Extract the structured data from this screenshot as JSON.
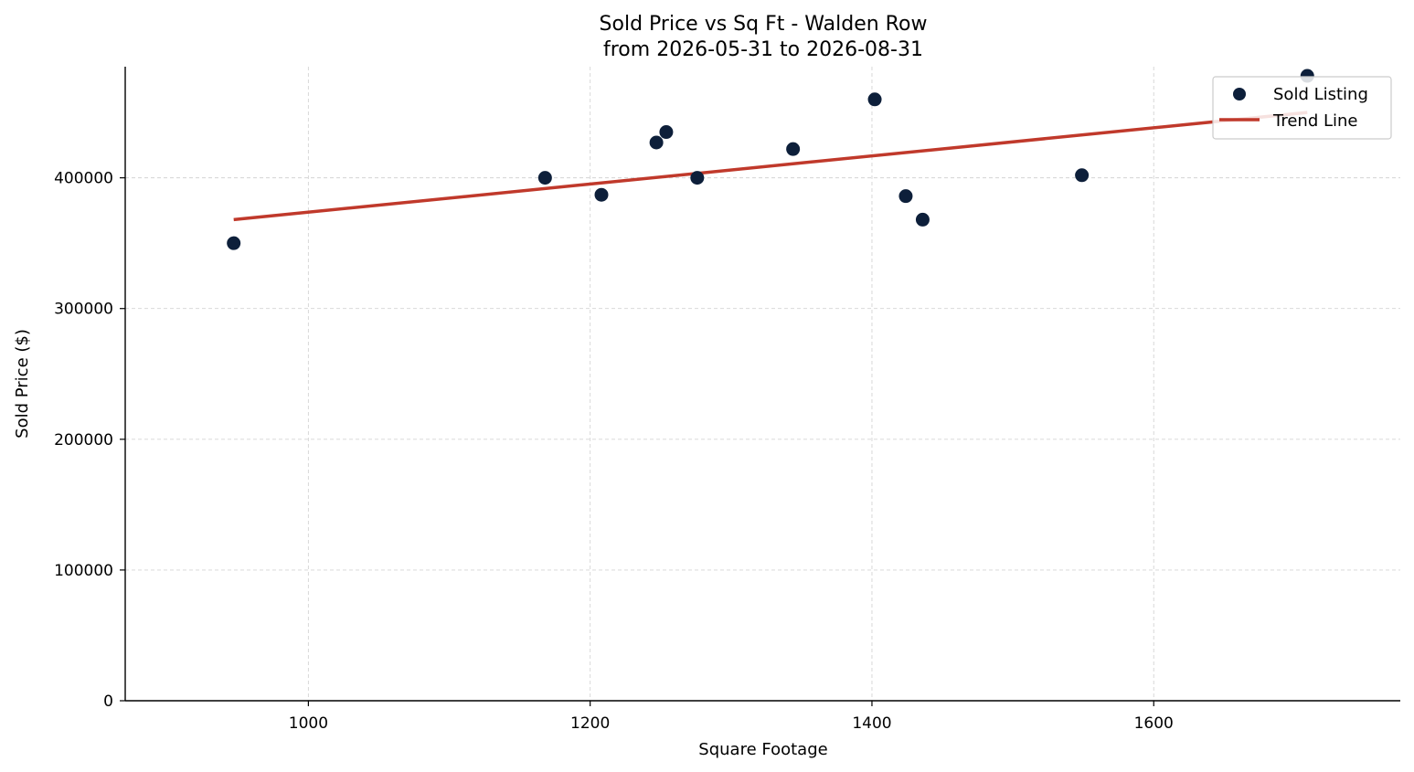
{
  "chart_data": {
    "type": "scatter",
    "title": "Sold Price vs Sq Ft - Walden Row",
    "subtitle": "from 2026-05-31 to 2026-08-31",
    "xlabel": "Square Footage",
    "ylabel": "Sold Price ($)",
    "xlim": [
      870,
      1775
    ],
    "ylim": [
      0,
      485000
    ],
    "x_ticks": [
      1000,
      1200,
      1400,
      1600
    ],
    "y_ticks": [
      0,
      100000,
      200000,
      300000,
      400000
    ],
    "grid": true,
    "legend_position": "top-right",
    "series": [
      {
        "name": "Sold Listing",
        "kind": "scatter",
        "color": "#0d1f3a",
        "points": [
          {
            "x": 947,
            "y": 350000
          },
          {
            "x": 1168,
            "y": 400000
          },
          {
            "x": 1208,
            "y": 387000
          },
          {
            "x": 1247,
            "y": 427000
          },
          {
            "x": 1254,
            "y": 435000
          },
          {
            "x": 1276,
            "y": 400000
          },
          {
            "x": 1344,
            "y": 422000
          },
          {
            "x": 1402,
            "y": 460000
          },
          {
            "x": 1424,
            "y": 386000
          },
          {
            "x": 1436,
            "y": 368000
          },
          {
            "x": 1549,
            "y": 402000
          },
          {
            "x": 1709,
            "y": 478000
          }
        ]
      },
      {
        "name": "Trend Line",
        "kind": "line",
        "color": "#c0392b",
        "points": [
          {
            "x": 947,
            "y": 368000
          },
          {
            "x": 1709,
            "y": 450000
          }
        ]
      }
    ]
  }
}
